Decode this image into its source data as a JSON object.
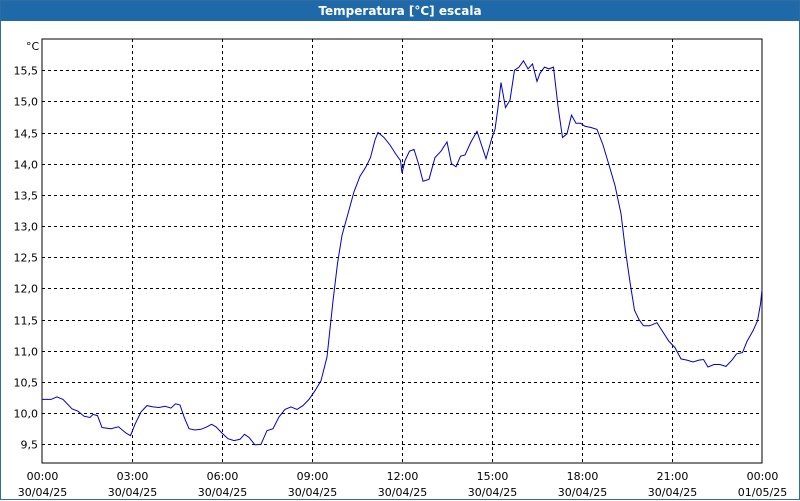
{
  "window": {
    "title": "Temperatura [°C] escala"
  },
  "chart_data": {
    "type": "line",
    "title": "Temperatura [°C] escala",
    "ylabel": "°C",
    "xlabel": "",
    "ylim": [
      9.2,
      16.0
    ],
    "grid": true,
    "y_ticks": [
      {
        "value": 9.5,
        "label": "9,5"
      },
      {
        "value": 10.0,
        "label": "10,0"
      },
      {
        "value": 10.5,
        "label": "10,5"
      },
      {
        "value": 11.0,
        "label": "11,0"
      },
      {
        "value": 11.5,
        "label": "11,5"
      },
      {
        "value": 12.0,
        "label": "12,0"
      },
      {
        "value": 12.5,
        "label": "12,5"
      },
      {
        "value": 13.0,
        "label": "13,0"
      },
      {
        "value": 13.5,
        "label": "13,5"
      },
      {
        "value": 14.0,
        "label": "14,0"
      },
      {
        "value": 14.5,
        "label": "14,5"
      },
      {
        "value": 15.0,
        "label": "15,0"
      },
      {
        "value": 15.5,
        "label": "15,5"
      }
    ],
    "x_ticks": [
      {
        "hour": 0,
        "time": "00:00",
        "date": "30/04/25"
      },
      {
        "hour": 3,
        "time": "03:00",
        "date": "30/04/25"
      },
      {
        "hour": 6,
        "time": "06:00",
        "date": "30/04/25"
      },
      {
        "hour": 9,
        "time": "09:00",
        "date": "30/04/25"
      },
      {
        "hour": 12,
        "time": "12:00",
        "date": "30/04/25"
      },
      {
        "hour": 15,
        "time": "15:00",
        "date": "30/04/25"
      },
      {
        "hour": 18,
        "time": "18:00",
        "date": "30/04/25"
      },
      {
        "hour": 21,
        "time": "21:00",
        "date": "30/04/25"
      },
      {
        "hour": 24,
        "time": "00:00",
        "date": "01/05/25"
      }
    ],
    "xlim": [
      0,
      24
    ],
    "series": [
      {
        "color": "#0000c8",
        "points": [
          [
            0.0,
            10.22
          ],
          [
            0.3,
            10.22
          ],
          [
            0.5,
            10.26
          ],
          [
            0.7,
            10.22
          ],
          [
            1.0,
            10.07
          ],
          [
            1.2,
            10.03
          ],
          [
            1.4,
            9.95
          ],
          [
            1.6,
            9.93
          ],
          [
            1.7,
            9.98
          ],
          [
            1.85,
            9.96
          ],
          [
            2.0,
            9.77
          ],
          [
            2.3,
            9.75
          ],
          [
            2.55,
            9.78
          ],
          [
            2.8,
            9.68
          ],
          [
            2.95,
            9.64
          ],
          [
            3.1,
            9.82
          ],
          [
            3.3,
            10.02
          ],
          [
            3.5,
            10.12
          ],
          [
            3.7,
            10.1
          ],
          [
            3.9,
            10.09
          ],
          [
            4.1,
            10.11
          ],
          [
            4.3,
            10.08
          ],
          [
            4.45,
            10.15
          ],
          [
            4.6,
            10.13
          ],
          [
            4.75,
            9.92
          ],
          [
            4.9,
            9.75
          ],
          [
            5.1,
            9.73
          ],
          [
            5.3,
            9.74
          ],
          [
            5.5,
            9.78
          ],
          [
            5.65,
            9.82
          ],
          [
            5.8,
            9.78
          ],
          [
            6.0,
            9.68
          ],
          [
            6.2,
            9.59
          ],
          [
            6.4,
            9.56
          ],
          [
            6.6,
            9.58
          ],
          [
            6.75,
            9.66
          ],
          [
            6.9,
            9.61
          ],
          [
            7.1,
            9.49
          ],
          [
            7.3,
            9.5
          ],
          [
            7.5,
            9.72
          ],
          [
            7.7,
            9.75
          ],
          [
            7.9,
            9.94
          ],
          [
            8.1,
            10.06
          ],
          [
            8.3,
            10.1
          ],
          [
            8.5,
            10.06
          ],
          [
            8.7,
            10.12
          ],
          [
            8.9,
            10.22
          ],
          [
            9.1,
            10.36
          ],
          [
            9.3,
            10.52
          ],
          [
            9.5,
            10.9
          ],
          [
            9.7,
            11.8
          ],
          [
            9.85,
            12.4
          ],
          [
            10.0,
            12.85
          ],
          [
            10.2,
            13.2
          ],
          [
            10.4,
            13.55
          ],
          [
            10.6,
            13.8
          ],
          [
            10.8,
            13.95
          ],
          [
            10.95,
            14.1
          ],
          [
            11.1,
            14.38
          ],
          [
            11.2,
            14.5
          ],
          [
            11.4,
            14.42
          ],
          [
            11.6,
            14.3
          ],
          [
            11.8,
            14.15
          ],
          [
            11.95,
            14.05
          ],
          [
            12.0,
            13.85
          ],
          [
            12.1,
            14.05
          ],
          [
            12.25,
            14.2
          ],
          [
            12.4,
            14.23
          ],
          [
            12.55,
            14.0
          ],
          [
            12.7,
            13.72
          ],
          [
            12.9,
            13.75
          ],
          [
            13.1,
            14.1
          ],
          [
            13.3,
            14.2
          ],
          [
            13.5,
            14.35
          ],
          [
            13.65,
            14.0
          ],
          [
            13.8,
            13.95
          ],
          [
            13.95,
            14.12
          ],
          [
            14.1,
            14.14
          ],
          [
            14.3,
            14.35
          ],
          [
            14.5,
            14.52
          ],
          [
            14.65,
            14.3
          ],
          [
            14.8,
            14.08
          ],
          [
            15.0,
            14.42
          ],
          [
            15.1,
            14.55
          ],
          [
            15.2,
            14.9
          ],
          [
            15.3,
            15.3
          ],
          [
            15.45,
            14.9
          ],
          [
            15.6,
            15.02
          ],
          [
            15.75,
            15.5
          ],
          [
            15.9,
            15.55
          ],
          [
            16.05,
            15.65
          ],
          [
            16.2,
            15.52
          ],
          [
            16.35,
            15.6
          ],
          [
            16.5,
            15.32
          ],
          [
            16.6,
            15.45
          ],
          [
            16.75,
            15.55
          ],
          [
            16.9,
            15.52
          ],
          [
            17.05,
            15.55
          ],
          [
            17.2,
            14.92
          ],
          [
            17.35,
            14.42
          ],
          [
            17.5,
            14.48
          ],
          [
            17.65,
            14.78
          ],
          [
            17.8,
            14.65
          ],
          [
            17.95,
            14.65
          ],
          [
            18.1,
            14.6
          ],
          [
            18.3,
            14.58
          ],
          [
            18.5,
            14.55
          ],
          [
            18.7,
            14.3
          ],
          [
            18.9,
            13.98
          ],
          [
            19.1,
            13.65
          ],
          [
            19.3,
            13.2
          ],
          [
            19.45,
            12.6
          ],
          [
            19.6,
            12.1
          ],
          [
            19.75,
            11.65
          ],
          [
            19.9,
            11.5
          ],
          [
            20.05,
            11.4
          ],
          [
            20.25,
            11.4
          ],
          [
            20.5,
            11.45
          ],
          [
            20.7,
            11.3
          ],
          [
            20.9,
            11.15
          ],
          [
            21.1,
            11.05
          ],
          [
            21.3,
            10.87
          ],
          [
            21.5,
            10.85
          ],
          [
            21.7,
            10.82
          ],
          [
            21.9,
            10.85
          ],
          [
            22.05,
            10.86
          ],
          [
            22.2,
            10.74
          ],
          [
            22.4,
            10.78
          ],
          [
            22.6,
            10.78
          ],
          [
            22.8,
            10.75
          ],
          [
            23.0,
            10.85
          ],
          [
            23.15,
            10.95
          ],
          [
            23.35,
            10.97
          ],
          [
            23.5,
            11.15
          ],
          [
            23.7,
            11.32
          ],
          [
            23.85,
            11.48
          ],
          [
            23.95,
            11.75
          ],
          [
            24.0,
            11.98
          ]
        ]
      }
    ]
  }
}
